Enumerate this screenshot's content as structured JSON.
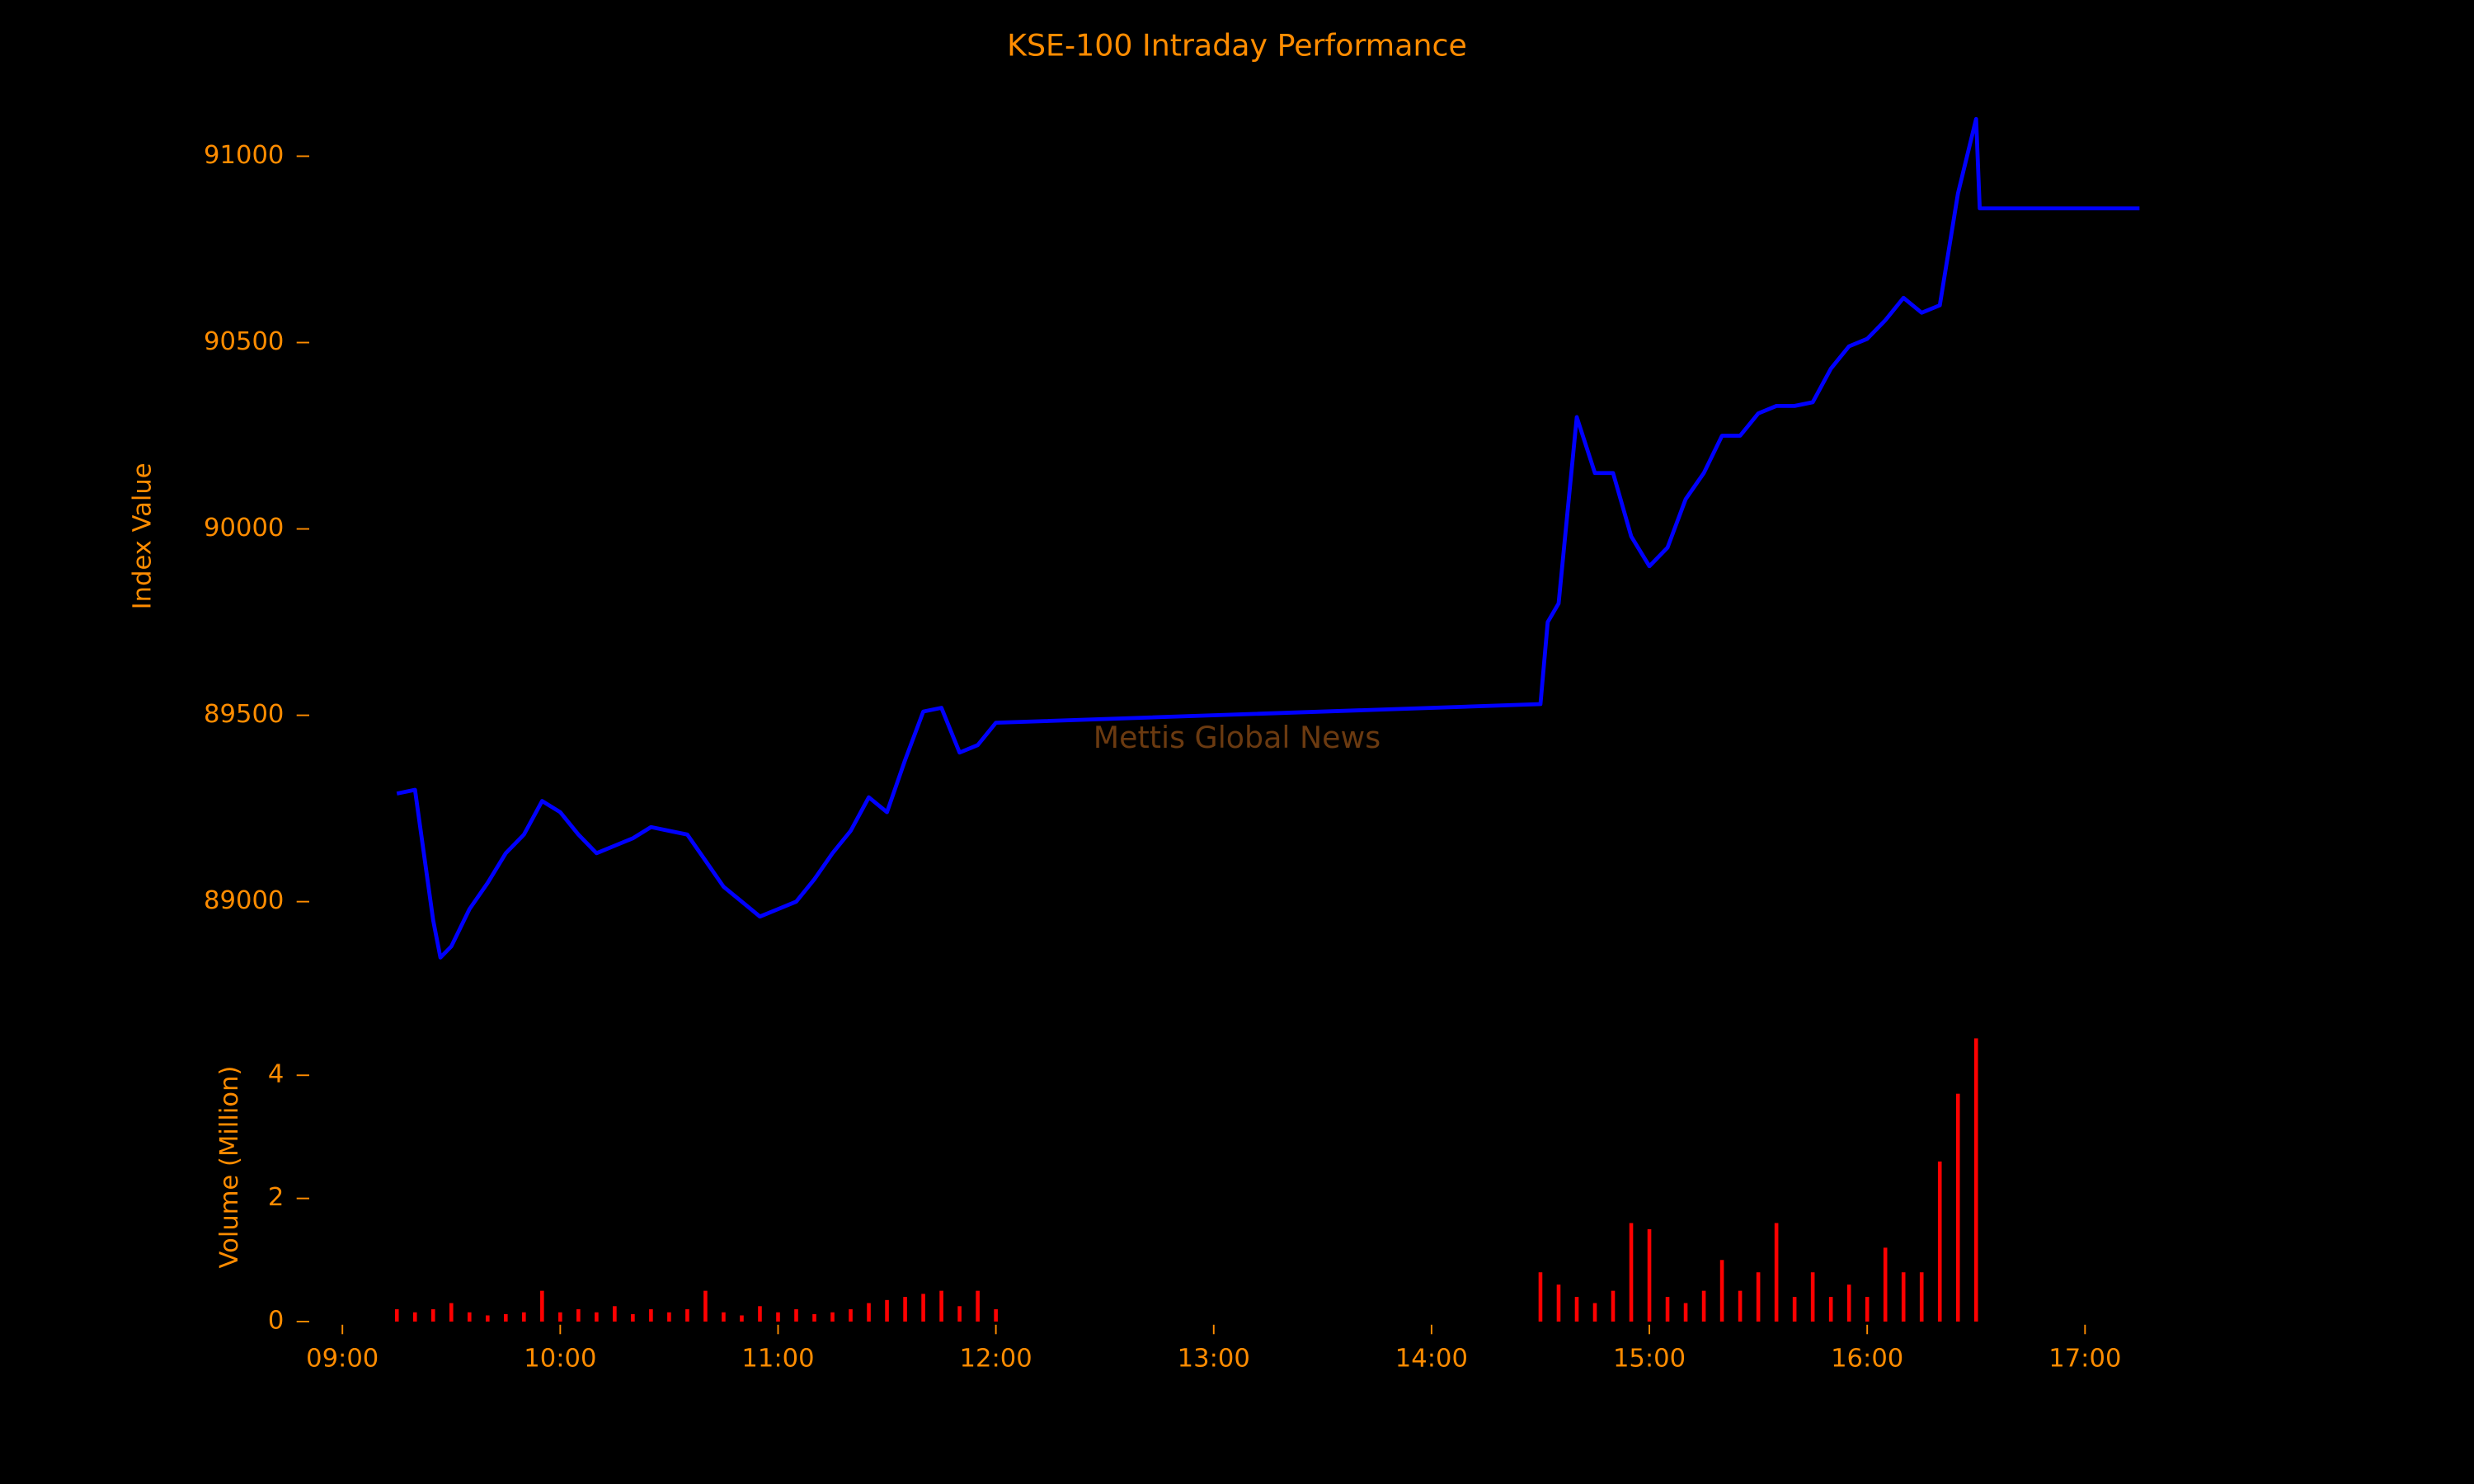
{
  "chart_data": [
    {
      "type": "line",
      "title": "KSE-100 Intraday Performance",
      "y_label": "Index Value",
      "annotation": "Mettis Global News",
      "color": "#0000ff",
      "x": [
        "09:15",
        "09:20",
        "09:25",
        "09:27",
        "09:30",
        "09:35",
        "09:40",
        "09:45",
        "09:50",
        "09:55",
        "10:00",
        "10:05",
        "10:10",
        "10:15",
        "10:20",
        "10:25",
        "10:30",
        "10:35",
        "10:40",
        "10:45",
        "10:50",
        "10:55",
        "11:00",
        "11:05",
        "11:10",
        "11:15",
        "11:20",
        "11:25",
        "11:30",
        "11:35",
        "11:40",
        "11:45",
        "11:50",
        "11:55",
        "12:00",
        "14:30",
        "14:32",
        "14:35",
        "14:40",
        "14:45",
        "14:50",
        "14:55",
        "15:00",
        "15:05",
        "15:10",
        "15:15",
        "15:20",
        "15:25",
        "15:30",
        "15:35",
        "15:40",
        "15:45",
        "15:50",
        "15:55",
        "16:00",
        "16:05",
        "16:10",
        "16:15",
        "16:20",
        "16:25",
        "16:30",
        "16:31",
        "17:15"
      ],
      "values": [
        89290,
        89300,
        88950,
        88850,
        88880,
        88980,
        89050,
        89130,
        89180,
        89270,
        89240,
        89180,
        89130,
        89150,
        89170,
        89200,
        89190,
        89180,
        89110,
        89040,
        89000,
        88960,
        88980,
        89000,
        89060,
        89130,
        89190,
        89280,
        89240,
        89380,
        89510,
        89520,
        89400,
        89420,
        89480,
        89530,
        89750,
        89800,
        90300,
        90150,
        90150,
        89980,
        89900,
        89950,
        90080,
        90150,
        90250,
        90250,
        90310,
        90330,
        90330,
        90340,
        90430,
        90490,
        90510,
        90560,
        90620,
        90580,
        90600,
        90900,
        91100,
        90860,
        90860
      ],
      "xlim": [
        "08:45",
        "17:30"
      ],
      "ylim": [
        88800,
        91150
      ],
      "yticks": [
        89000,
        89500,
        90000,
        90500,
        91000
      ]
    },
    {
      "type": "bar",
      "y_label": "Volume (Million)",
      "color": "#ff0000",
      "x": [
        "09:15",
        "09:20",
        "09:25",
        "09:30",
        "09:35",
        "09:40",
        "09:45",
        "09:50",
        "09:55",
        "10:00",
        "10:05",
        "10:10",
        "10:15",
        "10:20",
        "10:25",
        "10:30",
        "10:35",
        "10:40",
        "10:45",
        "10:50",
        "10:55",
        "11:00",
        "11:05",
        "11:10",
        "11:15",
        "11:20",
        "11:25",
        "11:30",
        "11:35",
        "11:40",
        "11:45",
        "11:50",
        "11:55",
        "12:00",
        "14:30",
        "14:35",
        "14:40",
        "14:45",
        "14:50",
        "14:55",
        "15:00",
        "15:05",
        "15:10",
        "15:15",
        "15:20",
        "15:25",
        "15:30",
        "15:35",
        "15:40",
        "15:45",
        "15:50",
        "15:55",
        "16:00",
        "16:05",
        "16:10",
        "16:15",
        "16:20",
        "16:25",
        "16:30"
      ],
      "values": [
        0.2,
        0.15,
        0.2,
        0.3,
        0.15,
        0.1,
        0.12,
        0.15,
        0.5,
        0.15,
        0.2,
        0.15,
        0.25,
        0.12,
        0.2,
        0.15,
        0.2,
        0.5,
        0.15,
        0.1,
        0.25,
        0.15,
        0.2,
        0.12,
        0.15,
        0.2,
        0.3,
        0.35,
        0.4,
        0.45,
        0.5,
        0.25,
        0.5,
        0.2,
        0.8,
        0.6,
        0.4,
        0.3,
        0.5,
        1.6,
        1.5,
        0.4,
        0.3,
        0.5,
        1.0,
        0.5,
        0.8,
        1.6,
        0.4,
        0.8,
        0.4,
        0.6,
        0.4,
        1.2,
        0.8,
        0.8,
        2.6,
        3.7,
        4.6
      ],
      "xlim": [
        "08:45",
        "17:30"
      ],
      "ylim": [
        0,
        4.8
      ],
      "yticks": [
        0,
        2,
        4
      ],
      "xticks": [
        "09:00",
        "10:00",
        "11:00",
        "12:00",
        "13:00",
        "14:00",
        "15:00",
        "16:00",
        "17:00"
      ]
    }
  ]
}
